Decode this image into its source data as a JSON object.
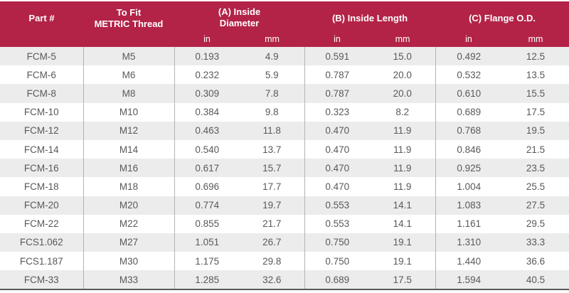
{
  "header": {
    "part_label": "Part #",
    "thread_label_line1": "To Fit",
    "thread_label_line2": "METRIC Thread",
    "col_a_label_line1": "(A) Inside",
    "col_a_label_line2": "Diameter",
    "col_b_label": "(B) Inside Length",
    "col_c_label": "(C) Flange O.D.",
    "unit_in": "in",
    "unit_mm": "mm"
  },
  "colors": {
    "header_bg": "#b32347",
    "header_text": "#ffffff",
    "row_alt_bg": "#ececec",
    "cell_text": "#58595b",
    "divider": "#b3b3b3",
    "bottom_border": "#5a5a5a"
  },
  "rows": [
    {
      "part": "FCM-5",
      "thread": "M5",
      "a_in": "0.193",
      "a_mm": "4.9",
      "b_in": "0.591",
      "b_mm": "15.0",
      "c_in": "0.492",
      "c_mm": "12.5"
    },
    {
      "part": "FCM-6",
      "thread": "M6",
      "a_in": "0.232",
      "a_mm": "5.9",
      "b_in": "0.787",
      "b_mm": "20.0",
      "c_in": "0.532",
      "c_mm": "13.5"
    },
    {
      "part": "FCM-8",
      "thread": "M8",
      "a_in": "0.309",
      "a_mm": "7.8",
      "b_in": "0.787",
      "b_mm": "20.0",
      "c_in": "0.610",
      "c_mm": "15.5"
    },
    {
      "part": "FCM-10",
      "thread": "M10",
      "a_in": "0.384",
      "a_mm": "9.8",
      "b_in": "0.323",
      "b_mm": "8.2",
      "c_in": "0.689",
      "c_mm": "17.5"
    },
    {
      "part": "FCM-12",
      "thread": "M12",
      "a_in": "0.463",
      "a_mm": "11.8",
      "b_in": "0.470",
      "b_mm": "11.9",
      "c_in": "0.768",
      "c_mm": "19.5"
    },
    {
      "part": "FCM-14",
      "thread": "M14",
      "a_in": "0.540",
      "a_mm": "13.7",
      "b_in": "0.470",
      "b_mm": "11.9",
      "c_in": "0.846",
      "c_mm": "21.5"
    },
    {
      "part": "FCM-16",
      "thread": "M16",
      "a_in": "0.617",
      "a_mm": "15.7",
      "b_in": "0.470",
      "b_mm": "11.9",
      "c_in": "0.925",
      "c_mm": "23.5"
    },
    {
      "part": "FCM-18",
      "thread": "M18",
      "a_in": "0.696",
      "a_mm": "17.7",
      "b_in": "0.470",
      "b_mm": "11.9",
      "c_in": "1.004",
      "c_mm": "25.5"
    },
    {
      "part": "FCM-20",
      "thread": "M20",
      "a_in": "0.774",
      "a_mm": "19.7",
      "b_in": "0.553",
      "b_mm": "14.1",
      "c_in": "1.083",
      "c_mm": "27.5"
    },
    {
      "part": "FCM-22",
      "thread": "M22",
      "a_in": "0.855",
      "a_mm": "21.7",
      "b_in": "0.553",
      "b_mm": "14.1",
      "c_in": "1.161",
      "c_mm": "29.5"
    },
    {
      "part": "FCS1.062",
      "thread": "M27",
      "a_in": "1.051",
      "a_mm": "26.7",
      "b_in": "0.750",
      "b_mm": "19.1",
      "c_in": "1.310",
      "c_mm": "33.3"
    },
    {
      "part": "FCS1.187",
      "thread": "M30",
      "a_in": "1.175",
      "a_mm": "29.8",
      "b_in": "0.750",
      "b_mm": "19.1",
      "c_in": "1.440",
      "c_mm": "36.6"
    },
    {
      "part": "FCM-33",
      "thread": "M33",
      "a_in": "1.285",
      "a_mm": "32.6",
      "b_in": "0.689",
      "b_mm": "17.5",
      "c_in": "1.594",
      "c_mm": "40.5"
    }
  ]
}
